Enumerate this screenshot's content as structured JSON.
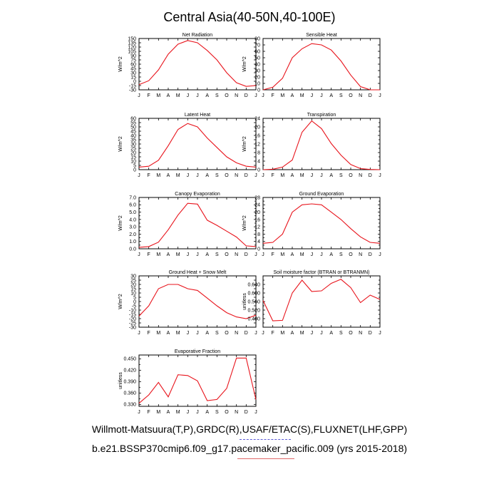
{
  "page_title": "Central Asia(40-50N,40-100E)",
  "footer": {
    "line1": "Willmott-Matsuura(T,P),GRDC(R),USAF/ETAC(S),FLUXNET(LHF,GPP)",
    "line2": "b.e21.BSSP370cmip6.f09_g17.pacemaker_pacific.009 (yrs 2015-2018)"
  },
  "colors": {
    "line": "#e8141c",
    "axis": "#000000"
  },
  "chart_data": [
    {
      "type": "line",
      "title": "Net Radiation",
      "ylabel": "W/m^2",
      "categories": [
        "J",
        "F",
        "M",
        "A",
        "M",
        "J",
        "J",
        "A",
        "S",
        "O",
        "N",
        "D",
        "J"
      ],
      "values": [
        -12,
        2,
        40,
        95,
        130,
        143,
        135,
        108,
        75,
        30,
        -5,
        -18,
        -15
      ],
      "ylim": [
        -30,
        150
      ],
      "yticks": [
        -30,
        -15,
        0,
        15,
        30,
        45,
        60,
        75,
        90,
        105,
        120,
        135,
        150
      ],
      "ytick_labels": [
        "-30",
        "-15",
        "0",
        "15",
        "30",
        "45",
        "60",
        "75",
        "90",
        "105",
        "120",
        "135",
        "150"
      ]
    },
    {
      "type": "line",
      "title": "Sensible Heat",
      "ylabel": "W/m^2",
      "categories": [
        "J",
        "F",
        "M",
        "A",
        "M",
        "J",
        "J",
        "A",
        "S",
        "O",
        "N",
        "D",
        "J"
      ],
      "values": [
        0,
        4,
        18,
        50,
        64,
        72,
        70,
        62,
        45,
        23,
        5,
        0,
        0
      ],
      "ylim": [
        0,
        80
      ],
      "yticks": [
        0,
        10,
        20,
        30,
        40,
        50,
        60,
        70,
        80
      ],
      "ytick_labels": [
        "0",
        "10",
        "20",
        "30",
        "40",
        "50",
        "60",
        "70",
        "80"
      ]
    },
    {
      "type": "line",
      "title": "Latent Heat",
      "ylabel": "W/m^2",
      "categories": [
        "J",
        "F",
        "M",
        "A",
        "M",
        "J",
        "J",
        "A",
        "S",
        "O",
        "N",
        "D",
        "J"
      ],
      "values": [
        3,
        4,
        11,
        28,
        47,
        54,
        50,
        37,
        26,
        15,
        8,
        4,
        3
      ],
      "ylim": [
        0,
        60
      ],
      "yticks": [
        0,
        5,
        10,
        15,
        20,
        25,
        30,
        35,
        40,
        45,
        50,
        55,
        60
      ],
      "ytick_labels": [
        "0",
        "5",
        "10",
        "15",
        "20",
        "25",
        "30",
        "35",
        "40",
        "45",
        "50",
        "55",
        "60"
      ]
    },
    {
      "type": "line",
      "title": "Transpiration",
      "ylabel": "W/m^2",
      "categories": [
        "J",
        "F",
        "M",
        "A",
        "M",
        "J",
        "J",
        "A",
        "S",
        "O",
        "N",
        "D",
        "J"
      ],
      "values": [
        0,
        0.2,
        1.2,
        4.5,
        17.5,
        22.8,
        19.2,
        12.2,
        6.8,
        2.4,
        0.5,
        0.1,
        0
      ],
      "ylim": [
        0,
        24
      ],
      "yticks": [
        0,
        2,
        4,
        6,
        8,
        10,
        12,
        14,
        16,
        18,
        20,
        22,
        24
      ],
      "ytick_labels": [
        "0",
        "",
        "4",
        "",
        "8",
        "",
        "12",
        "",
        "16",
        "",
        "20",
        "",
        "24"
      ]
    },
    {
      "type": "line",
      "title": "Canopy Evaporation",
      "ylabel": "W/m^2",
      "categories": [
        "J",
        "F",
        "M",
        "A",
        "M",
        "J",
        "J",
        "A",
        "S",
        "O",
        "N",
        "D",
        "J"
      ],
      "values": [
        0.2,
        0.3,
        0.9,
        2.6,
        4.6,
        6.2,
        6.1,
        3.9,
        3.2,
        2.4,
        1.6,
        0.4,
        0.3
      ],
      "ylim": [
        0,
        7
      ],
      "yticks": [
        0,
        0.5,
        1,
        1.5,
        2,
        2.5,
        3,
        3.5,
        4,
        4.5,
        5,
        5.5,
        6,
        6.5,
        7
      ],
      "ytick_labels": [
        "0.0",
        "",
        "1.0",
        "",
        "2.0",
        "",
        "3.0",
        "",
        "4.0",
        "",
        "5.0",
        "",
        "6.0",
        "",
        "7.0"
      ]
    },
    {
      "type": "line",
      "title": "Ground Evaporation",
      "ylabel": "W/m^2",
      "categories": [
        "J",
        "F",
        "M",
        "A",
        "M",
        "J",
        "J",
        "A",
        "S",
        "O",
        "N",
        "D",
        "J"
      ],
      "values": [
        3,
        3.5,
        8,
        20,
        24,
        24.5,
        24,
        20,
        16,
        11,
        6.5,
        3.5,
        3
      ],
      "ylim": [
        0,
        28
      ],
      "yticks": [
        0,
        2,
        4,
        6,
        8,
        10,
        12,
        14,
        16,
        18,
        20,
        22,
        24,
        26,
        28
      ],
      "ytick_labels": [
        "0",
        "",
        "4",
        "",
        "8",
        "",
        "12",
        "",
        "16",
        "",
        "20",
        "",
        "24",
        "",
        "28"
      ]
    },
    {
      "type": "line",
      "title": "Ground Heat + Snow Melt",
      "ylabel": "W/m^2",
      "categories": [
        "J",
        "F",
        "M",
        "A",
        "M",
        "J",
        "J",
        "A",
        "S",
        "O",
        "N",
        "D",
        "J"
      ],
      "values": [
        -17,
        -5,
        15,
        20,
        20,
        15,
        13,
        4,
        -5,
        -13,
        -18,
        -20,
        -16
      ],
      "ylim": [
        -30,
        30
      ],
      "yticks": [
        -30,
        -25,
        -20,
        -15,
        -10,
        -5,
        0,
        5,
        10,
        15,
        20,
        25,
        30
      ],
      "ytick_labels": [
        "-30",
        "-25",
        "-20",
        "-15",
        "-10",
        "-5",
        "0",
        "5",
        "10",
        "15",
        "20",
        "25",
        "30"
      ]
    },
    {
      "type": "line",
      "title": "Soil moisture factor (BTRAN or BTRANMN)",
      "ylabel": "unitless",
      "categories": [
        "J",
        "F",
        "M",
        "A",
        "M",
        "J",
        "J",
        "A",
        "S",
        "O",
        "N",
        "D",
        "J"
      ],
      "values": [
        0.565,
        0.47,
        0.472,
        0.6,
        0.66,
        0.607,
        0.61,
        0.645,
        0.664,
        0.625,
        0.555,
        0.59,
        0.57
      ],
      "ylim": [
        0.44,
        0.68
      ],
      "yticks": [
        0.44,
        0.46,
        0.48,
        0.5,
        0.52,
        0.54,
        0.56,
        0.58,
        0.6,
        0.62,
        0.64,
        0.66,
        0.68
      ],
      "ytick_labels": [
        "",
        "",
        "0.480",
        "",
        "0.520",
        "",
        "0.560",
        "",
        "0.600",
        "",
        "0.640",
        "",
        ""
      ]
    },
    {
      "type": "line",
      "title": "Evaporative Fraction",
      "ylabel": "unitless",
      "categories": [
        "J",
        "F",
        "M",
        "A",
        "M",
        "J",
        "J",
        "A",
        "S",
        "O",
        "N",
        "D",
        "J"
      ],
      "values": [
        0.333,
        0.355,
        0.388,
        0.35,
        0.408,
        0.406,
        0.392,
        0.34,
        0.343,
        0.372,
        0.452,
        0.452,
        0.343
      ],
      "ylim": [
        0.325,
        0.46
      ],
      "yticks": [
        0.33,
        0.345,
        0.36,
        0.375,
        0.39,
        0.405,
        0.42,
        0.435,
        0.45
      ],
      "ytick_labels": [
        "0.330",
        "",
        "0.360",
        "",
        "0.390",
        "",
        "0.420",
        "",
        "0.450"
      ]
    }
  ]
}
